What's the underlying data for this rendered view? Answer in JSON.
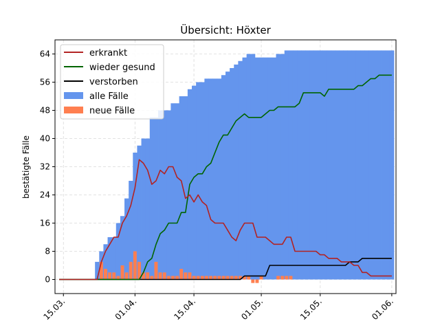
{
  "chart_data": {
    "type": "area",
    "title": "Übersicht: Höxter",
    "xlabel": "",
    "ylabel": "bestätigte Fälle",
    "ylim": [
      -4,
      68
    ],
    "yticks": [
      0,
      8,
      16,
      24,
      32,
      40,
      48,
      56,
      64
    ],
    "xlim": [
      "2020-03-13",
      "2020-06-02"
    ],
    "xticks": [
      {
        "date": "2020-03-15",
        "label": "15.03."
      },
      {
        "date": "2020-04-01",
        "label": "01.04."
      },
      {
        "date": "2020-04-15",
        "label": "15.04."
      },
      {
        "date": "2020-05-01",
        "label": "01.05."
      },
      {
        "date": "2020-05-15",
        "label": "15.05."
      },
      {
        "date": "2020-06-01",
        "label": "01.06."
      }
    ],
    "grid": true,
    "legend_position": "top-left",
    "colors": {
      "erkrankt": "#b22222",
      "wieder_gesund": "#006400",
      "verstorben": "#000000",
      "alle_faelle": "#6495ed",
      "neue_faelle": "#ff7f50"
    },
    "legend": [
      "erkrankt",
      "wieder gesund",
      "verstorben",
      "alle Fälle",
      "neue Fälle"
    ],
    "series": [
      {
        "name": "erkrankt",
        "kind": "line",
        "x": [
          "2020-03-14",
          "2020-03-23",
          "2020-03-24",
          "2020-03-25",
          "2020-03-26",
          "2020-03-27",
          "2020-03-28",
          "2020-03-29",
          "2020-03-30",
          "2020-03-31",
          "2020-04-01",
          "2020-04-02",
          "2020-04-03",
          "2020-04-04",
          "2020-04-05",
          "2020-04-06",
          "2020-04-07",
          "2020-04-08",
          "2020-04-09",
          "2020-04-10",
          "2020-04-11",
          "2020-04-12",
          "2020-04-13",
          "2020-04-14",
          "2020-04-15",
          "2020-04-16",
          "2020-04-17",
          "2020-04-18",
          "2020-04-19",
          "2020-04-20",
          "2020-04-21",
          "2020-04-22",
          "2020-04-23",
          "2020-04-24",
          "2020-04-25",
          "2020-04-26",
          "2020-04-27",
          "2020-04-28",
          "2020-04-29",
          "2020-04-30",
          "2020-05-01",
          "2020-05-02",
          "2020-05-03",
          "2020-05-04",
          "2020-05-05",
          "2020-05-06",
          "2020-05-07",
          "2020-05-08",
          "2020-05-09",
          "2020-05-10",
          "2020-05-11",
          "2020-05-12",
          "2020-05-13",
          "2020-05-14",
          "2020-05-15",
          "2020-05-16",
          "2020-05-17",
          "2020-05-18",
          "2020-05-19",
          "2020-05-20",
          "2020-05-21",
          "2020-05-22",
          "2020-05-23",
          "2020-05-24",
          "2020-05-25",
          "2020-05-26",
          "2020-05-27",
          "2020-05-28",
          "2020-05-29",
          "2020-05-30",
          "2020-05-31",
          "2020-06-01"
        ],
        "values": [
          0,
          0,
          5,
          8,
          10,
          12,
          12,
          16,
          18,
          21,
          26,
          34,
          33,
          31,
          27,
          28,
          31,
          30,
          32,
          32,
          29,
          28,
          23,
          24,
          22,
          24,
          22,
          21,
          17,
          16,
          16,
          16,
          14,
          12,
          11,
          14,
          16,
          16,
          16,
          12,
          12,
          12,
          11,
          10,
          10,
          10,
          12,
          12,
          8,
          8,
          8,
          8,
          8,
          8,
          7,
          7,
          6,
          6,
          6,
          5,
          5,
          5,
          4,
          4,
          2,
          2,
          1,
          1,
          1,
          1,
          1,
          1
        ]
      },
      {
        "name": "wieder gesund",
        "kind": "line",
        "x": [
          "2020-03-14",
          "2020-04-02",
          "2020-04-03",
          "2020-04-04",
          "2020-04-05",
          "2020-04-06",
          "2020-04-07",
          "2020-04-08",
          "2020-04-09",
          "2020-04-10",
          "2020-04-11",
          "2020-04-12",
          "2020-04-13",
          "2020-04-14",
          "2020-04-15",
          "2020-04-16",
          "2020-04-17",
          "2020-04-18",
          "2020-04-19",
          "2020-04-20",
          "2020-04-21",
          "2020-04-22",
          "2020-04-23",
          "2020-04-24",
          "2020-04-25",
          "2020-04-26",
          "2020-04-27",
          "2020-04-28",
          "2020-04-29",
          "2020-04-30",
          "2020-05-01",
          "2020-05-02",
          "2020-05-03",
          "2020-05-04",
          "2020-05-05",
          "2020-05-06",
          "2020-05-07",
          "2020-05-08",
          "2020-05-09",
          "2020-05-10",
          "2020-05-11",
          "2020-05-12",
          "2020-05-13",
          "2020-05-14",
          "2020-05-15",
          "2020-05-16",
          "2020-05-17",
          "2020-05-18",
          "2020-05-19",
          "2020-05-20",
          "2020-05-21",
          "2020-05-22",
          "2020-05-23",
          "2020-05-24",
          "2020-05-25",
          "2020-05-26",
          "2020-05-27",
          "2020-05-28",
          "2020-05-29",
          "2020-05-30",
          "2020-05-31",
          "2020-06-01"
        ],
        "values": [
          0,
          0,
          2,
          5,
          6,
          10,
          13,
          14,
          16,
          16,
          16,
          19,
          19,
          27,
          29,
          30,
          30,
          32,
          33,
          36,
          39,
          41,
          41,
          43,
          45,
          46,
          47,
          46,
          46,
          46,
          46,
          47,
          48,
          48,
          49,
          49,
          49,
          49,
          49,
          50,
          53,
          53,
          53,
          53,
          53,
          52,
          54,
          54,
          54,
          54,
          54,
          54,
          54,
          55,
          55,
          56,
          57,
          57,
          58,
          58,
          58,
          58
        ]
      },
      {
        "name": "verstorben",
        "kind": "line",
        "x": [
          "2020-03-14",
          "2020-04-26",
          "2020-04-27",
          "2020-04-28",
          "2020-04-29",
          "2020-04-30",
          "2020-05-01",
          "2020-05-02",
          "2020-05-03",
          "2020-05-04",
          "2020-05-14",
          "2020-05-21",
          "2020-05-22",
          "2020-05-23",
          "2020-05-24",
          "2020-05-25",
          "2020-05-26",
          "2020-05-27",
          "2020-06-01"
        ],
        "values": [
          0,
          0,
          1,
          1,
          1,
          1,
          1,
          1,
          4,
          4,
          4,
          4,
          5,
          5,
          5,
          6,
          6,
          6,
          6
        ]
      },
      {
        "name": "alle Fälle",
        "kind": "bar",
        "x": [
          "2020-03-23",
          "2020-03-24",
          "2020-03-25",
          "2020-03-26",
          "2020-03-27",
          "2020-03-28",
          "2020-03-29",
          "2020-03-30",
          "2020-03-31",
          "2020-04-01",
          "2020-04-02",
          "2020-04-03",
          "2020-04-04",
          "2020-04-05",
          "2020-04-06",
          "2020-04-07",
          "2020-04-08",
          "2020-04-09",
          "2020-04-10",
          "2020-04-11",
          "2020-04-12",
          "2020-04-13",
          "2020-04-14",
          "2020-04-15",
          "2020-04-16",
          "2020-04-17",
          "2020-04-18",
          "2020-04-19",
          "2020-04-20",
          "2020-04-21",
          "2020-04-22",
          "2020-04-23",
          "2020-04-24",
          "2020-04-25",
          "2020-04-26",
          "2020-04-27",
          "2020-04-28",
          "2020-04-29",
          "2020-04-30",
          "2020-05-01",
          "2020-05-02",
          "2020-05-03",
          "2020-05-04",
          "2020-05-05",
          "2020-05-06",
          "2020-05-07",
          "2020-05-08",
          "2020-05-09",
          "2020-05-10",
          "2020-05-11",
          "2020-05-12",
          "2020-05-13",
          "2020-05-14",
          "2020-05-15",
          "2020-05-16",
          "2020-05-17",
          "2020-05-18",
          "2020-05-19",
          "2020-05-20",
          "2020-05-21",
          "2020-05-22",
          "2020-05-23",
          "2020-05-24",
          "2020-05-25",
          "2020-05-26",
          "2020-05-27",
          "2020-05-28",
          "2020-05-29",
          "2020-05-30",
          "2020-05-31",
          "2020-06-01"
        ],
        "values": [
          5,
          8,
          10,
          12,
          12,
          16,
          18,
          23,
          28,
          36,
          38,
          40,
          40,
          46,
          46,
          48,
          48,
          48,
          50,
          50,
          52,
          52,
          54,
          55,
          56,
          56,
          57,
          57,
          57,
          57,
          58,
          59,
          60,
          61,
          62,
          63,
          64,
          64,
          63,
          63,
          63,
          63,
          63,
          64,
          64,
          65,
          65,
          65,
          65,
          65,
          65,
          65,
          65,
          65,
          65,
          65,
          65,
          65,
          65,
          65,
          65,
          65,
          65,
          65,
          65,
          65,
          65,
          65,
          65,
          65,
          65
        ]
      },
      {
        "name": "neue Fälle",
        "kind": "bar",
        "x": [
          "2020-03-24",
          "2020-03-25",
          "2020-03-26",
          "2020-03-27",
          "2020-03-28",
          "2020-03-29",
          "2020-03-30",
          "2020-03-31",
          "2020-04-01",
          "2020-04-02",
          "2020-04-03",
          "2020-04-04",
          "2020-04-05",
          "2020-04-06",
          "2020-04-07",
          "2020-04-08",
          "2020-04-09",
          "2020-04-10",
          "2020-04-11",
          "2020-04-12",
          "2020-04-13",
          "2020-04-14",
          "2020-04-15",
          "2020-04-16",
          "2020-04-17",
          "2020-04-18",
          "2020-04-19",
          "2020-04-20",
          "2020-04-21",
          "2020-04-22",
          "2020-04-23",
          "2020-04-24",
          "2020-04-25",
          "2020-04-26",
          "2020-04-27",
          "2020-04-28",
          "2020-04-29",
          "2020-04-30",
          "2020-05-01",
          "2020-05-05",
          "2020-05-06",
          "2020-05-07",
          "2020-05-08"
        ],
        "values": [
          5,
          3,
          2,
          2,
          1,
          4,
          2,
          5,
          8,
          5,
          2,
          2,
          1,
          5,
          2,
          2,
          1,
          1,
          1,
          3,
          2,
          2,
          1,
          1,
          1,
          1,
          1,
          1,
          1,
          1,
          1,
          1,
          1,
          1,
          1,
          1,
          -1,
          -1,
          1,
          1,
          1,
          1,
          1
        ]
      }
    ]
  }
}
